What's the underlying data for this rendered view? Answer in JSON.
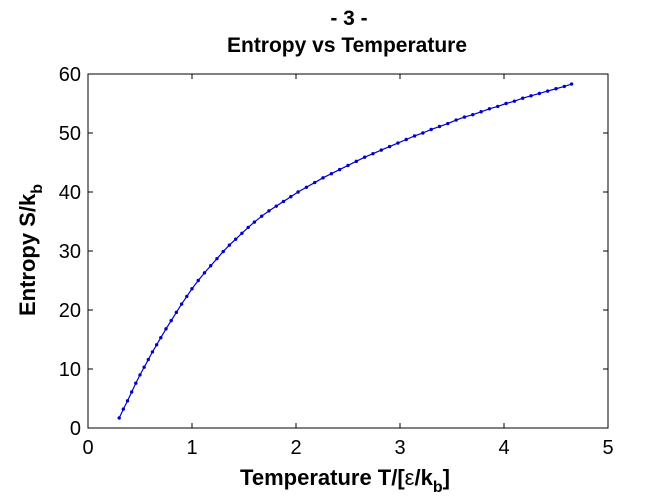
{
  "chart_data": {
    "type": "line",
    "title_line1": "- 3 -",
    "title_line2": "Entropy vs Temperature",
    "xlabel_main": "Temperature T/[",
    "xlabel_epsilon": "ε",
    "xlabel_slash": "/k",
    "xlabel_sub": "b",
    "xlabel_close": "]",
    "ylabel_main": "Entropy S/k",
    "ylabel_sub": "b",
    "xlim": [
      0,
      5
    ],
    "ylim": [
      0,
      60
    ],
    "xticks": [
      0,
      1,
      2,
      3,
      4,
      5
    ],
    "yticks": [
      0,
      10,
      20,
      30,
      40,
      50,
      60
    ],
    "grid": false,
    "box": true,
    "series": [
      {
        "color": "#0000cc",
        "marker": "dot",
        "x": [
          0.3,
          0.34,
          0.38,
          0.42,
          0.46,
          0.5,
          0.54,
          0.58,
          0.62,
          0.66,
          0.7,
          0.75,
          0.8,
          0.85,
          0.9,
          0.95,
          1.0,
          1.06,
          1.12,
          1.18,
          1.24,
          1.3,
          1.36,
          1.42,
          1.48,
          1.54,
          1.6,
          1.67,
          1.74,
          1.81,
          1.88,
          1.95,
          2.02,
          2.1,
          2.18,
          2.26,
          2.34,
          2.42,
          2.5,
          2.58,
          2.66,
          2.74,
          2.82,
          2.9,
          2.98,
          3.06,
          3.14,
          3.22,
          3.3,
          3.38,
          3.46,
          3.54,
          3.62,
          3.7,
          3.78,
          3.86,
          3.94,
          4.02,
          4.1,
          4.18,
          4.26,
          4.34,
          4.42,
          4.5,
          4.58,
          4.65
        ],
        "y": [
          1.7,
          3.2,
          4.6,
          6.1,
          7.6,
          9.0,
          10.3,
          11.6,
          12.9,
          14.1,
          15.3,
          16.8,
          18.2,
          19.6,
          21.0,
          22.3,
          23.6,
          25.0,
          26.3,
          27.5,
          28.7,
          29.9,
          31.0,
          32.0,
          33.0,
          34.0,
          34.9,
          35.9,
          36.8,
          37.6,
          38.4,
          39.2,
          40.0,
          40.8,
          41.6,
          42.4,
          43.1,
          43.8,
          44.5,
          45.2,
          45.9,
          46.5,
          47.1,
          47.7,
          48.3,
          48.9,
          49.5,
          50.0,
          50.6,
          51.1,
          51.6,
          52.2,
          52.7,
          53.1,
          53.6,
          54.1,
          54.5,
          55.0,
          55.4,
          55.9,
          56.3,
          56.7,
          57.1,
          57.5,
          57.9,
          58.3
        ]
      }
    ]
  }
}
